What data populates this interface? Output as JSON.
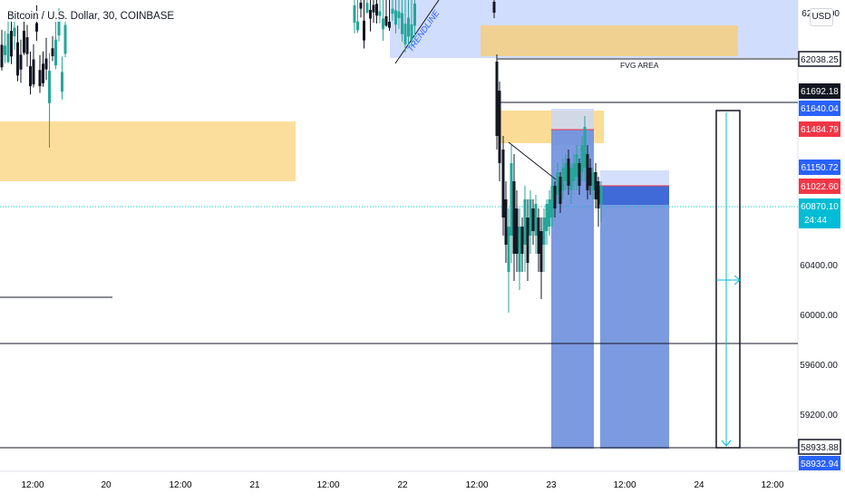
{
  "header": {
    "symbol_title": "Bitcoin / U.S. Dollar, 30, COINBASE",
    "currency_button": "USD"
  },
  "colors": {
    "up": "#26a69a",
    "down": "#131722",
    "zone_orange": "#fbd88b",
    "zone_blue": "#c9d7fb",
    "position_blue": "#6e8fdd",
    "position_dark": "#3f6ad8",
    "label_blue": "#2962ff",
    "label_red": "#f23645",
    "label_black": "#131722",
    "label_teal": "#00bcd4",
    "dotted_current": "#00bcd4"
  },
  "chart_data": {
    "type": "candlestick",
    "title": "Bitcoin / U.S. Dollar, 30, COINBASE",
    "price_axis": {
      "range": [
        58700,
        62250
      ],
      "tick_labels": [
        "62000.00",
        "60400.00",
        "60000.00",
        "59600.00",
        "59200.00"
      ],
      "tick_values": [
        62000,
        60400,
        60000,
        59600,
        59200
      ]
    },
    "time_axis": {
      "tick_labels": [
        "12:00",
        "20",
        "12:00",
        "21",
        "12:00",
        "22",
        "12:00",
        "23",
        "12:00",
        "24",
        "12:00"
      ]
    },
    "price_labels": [
      {
        "text": "62038.25",
        "value": 62038.25,
        "style": "black-outline"
      },
      {
        "text": "61692.18",
        "value": 61692.18,
        "style": "black"
      },
      {
        "text": "61640.04",
        "value": 61640.04,
        "style": "blue"
      },
      {
        "text": "61484.79",
        "value": 61484.79,
        "style": "red"
      },
      {
        "text": "61150.72",
        "value": 61150.72,
        "style": "blue"
      },
      {
        "text": "61022.60",
        "value": 61022.6,
        "style": "red"
      },
      {
        "text": "60870.10",
        "value": 60870.1,
        "style": "teal"
      },
      {
        "text": "24:44",
        "value": 60870.1,
        "style": "teal-sub"
      },
      {
        "text": "58933.88",
        "value": 58933.88,
        "style": "black-outline"
      },
      {
        "text": "58932.94",
        "value": 58932.94,
        "style": "blue-partial"
      }
    ],
    "annotations": [
      {
        "text": "FVG AREA",
        "kind": "zone-label"
      },
      {
        "text": "TRENDLINE",
        "kind": "trendline-label"
      }
    ],
    "horizontal_lines": [
      62038.25,
      61692.18,
      59730,
      58933.88
    ],
    "current_price": 60870.1
  }
}
